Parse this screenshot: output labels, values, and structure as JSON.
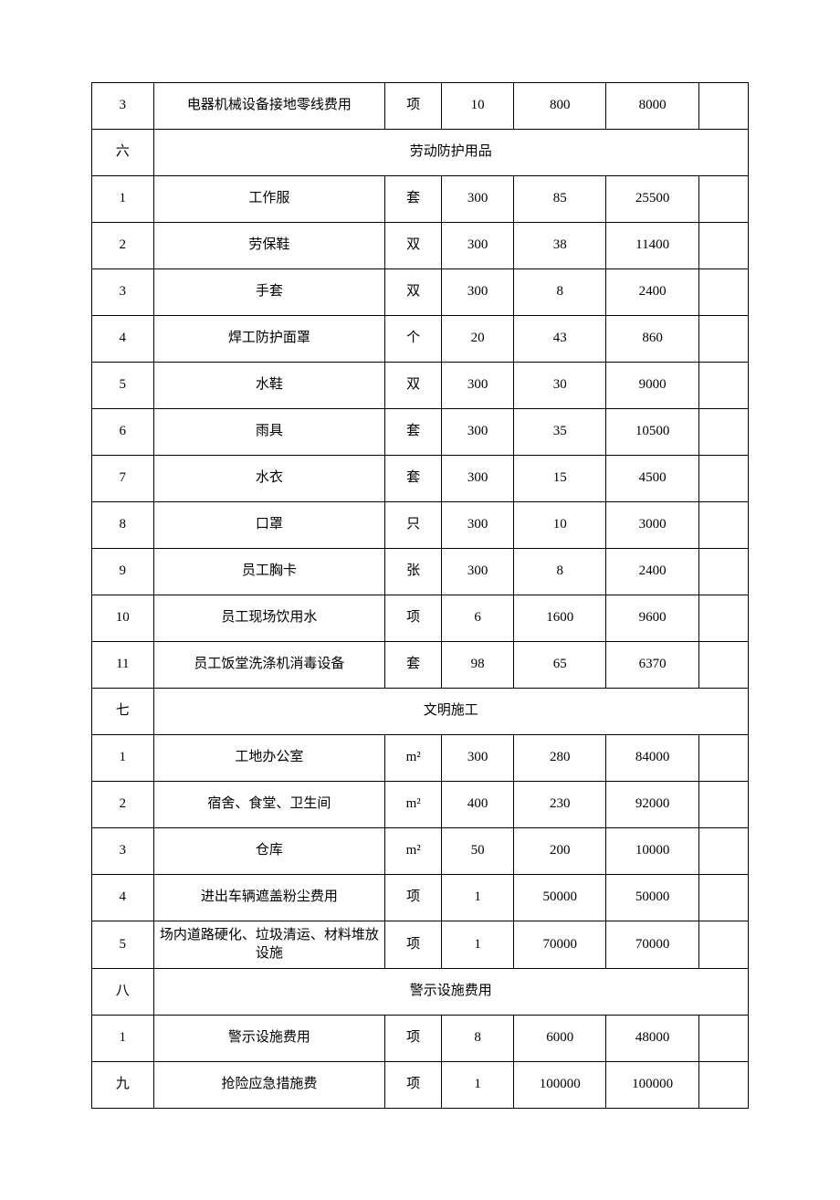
{
  "table": {
    "colors": {
      "border": "#000000",
      "text": "#000000",
      "background": "#ffffff"
    },
    "font_size": 15,
    "rows": [
      {
        "type": "data",
        "cells": [
          "3",
          "电器机械设备接地零线费用",
          "项",
          "10",
          "800",
          "8000",
          ""
        ]
      },
      {
        "type": "section",
        "index": "六",
        "title": "劳动防护用品"
      },
      {
        "type": "data",
        "cells": [
          "1",
          "工作服",
          "套",
          "300",
          "85",
          "25500",
          ""
        ]
      },
      {
        "type": "data",
        "cells": [
          "2",
          "劳保鞋",
          "双",
          "300",
          "38",
          "11400",
          ""
        ]
      },
      {
        "type": "data",
        "cells": [
          "3",
          "手套",
          "双",
          "300",
          "8",
          "2400",
          ""
        ]
      },
      {
        "type": "data",
        "cells": [
          "4",
          "焊工防护面罩",
          "个",
          "20",
          "43",
          "860",
          ""
        ]
      },
      {
        "type": "data",
        "cells": [
          "5",
          "水鞋",
          "双",
          "300",
          "30",
          "9000",
          ""
        ]
      },
      {
        "type": "data",
        "cells": [
          "6",
          "雨具",
          "套",
          "300",
          "35",
          "10500",
          ""
        ]
      },
      {
        "type": "data",
        "cells": [
          "7",
          "水衣",
          "套",
          "300",
          "15",
          "4500",
          ""
        ]
      },
      {
        "type": "data",
        "cells": [
          "8",
          "口罩",
          "只",
          "300",
          "10",
          "3000",
          ""
        ]
      },
      {
        "type": "data",
        "cells": [
          "9",
          "员工胸卡",
          "张",
          "300",
          "8",
          "2400",
          ""
        ]
      },
      {
        "type": "data",
        "cells": [
          "10",
          "员工现场饮用水",
          "项",
          "6",
          "1600",
          "9600",
          ""
        ]
      },
      {
        "type": "data",
        "cells": [
          "11",
          "员工饭堂洗涤机消毒设备",
          "套",
          "98",
          "65",
          "6370",
          ""
        ]
      },
      {
        "type": "section",
        "index": "七",
        "title": "文明施工"
      },
      {
        "type": "data",
        "cells": [
          "1",
          "工地办公室",
          "m²",
          "300",
          "280",
          "84000",
          ""
        ]
      },
      {
        "type": "data",
        "cells": [
          "2",
          "宿舍、食堂、卫生间",
          "m²",
          "400",
          "230",
          "92000",
          ""
        ]
      },
      {
        "type": "data",
        "cells": [
          "3",
          "仓库",
          "m²",
          "50",
          "200",
          "10000",
          ""
        ]
      },
      {
        "type": "data",
        "cells": [
          "4",
          "进出车辆遮盖粉尘费用",
          "项",
          "1",
          "50000",
          "50000",
          ""
        ]
      },
      {
        "type": "data",
        "cells": [
          "5",
          "场内道路硬化、垃圾清运、材料堆放设施",
          "项",
          "1",
          "70000",
          "70000",
          ""
        ]
      },
      {
        "type": "section",
        "index": "八",
        "title": "警示设施费用"
      },
      {
        "type": "data",
        "cells": [
          "1",
          "警示设施费用",
          "项",
          "8",
          "6000",
          "48000",
          ""
        ]
      },
      {
        "type": "data",
        "cells": [
          "九",
          "抢险应急措施费",
          "项",
          "1",
          "100000",
          "100000",
          ""
        ]
      }
    ]
  }
}
